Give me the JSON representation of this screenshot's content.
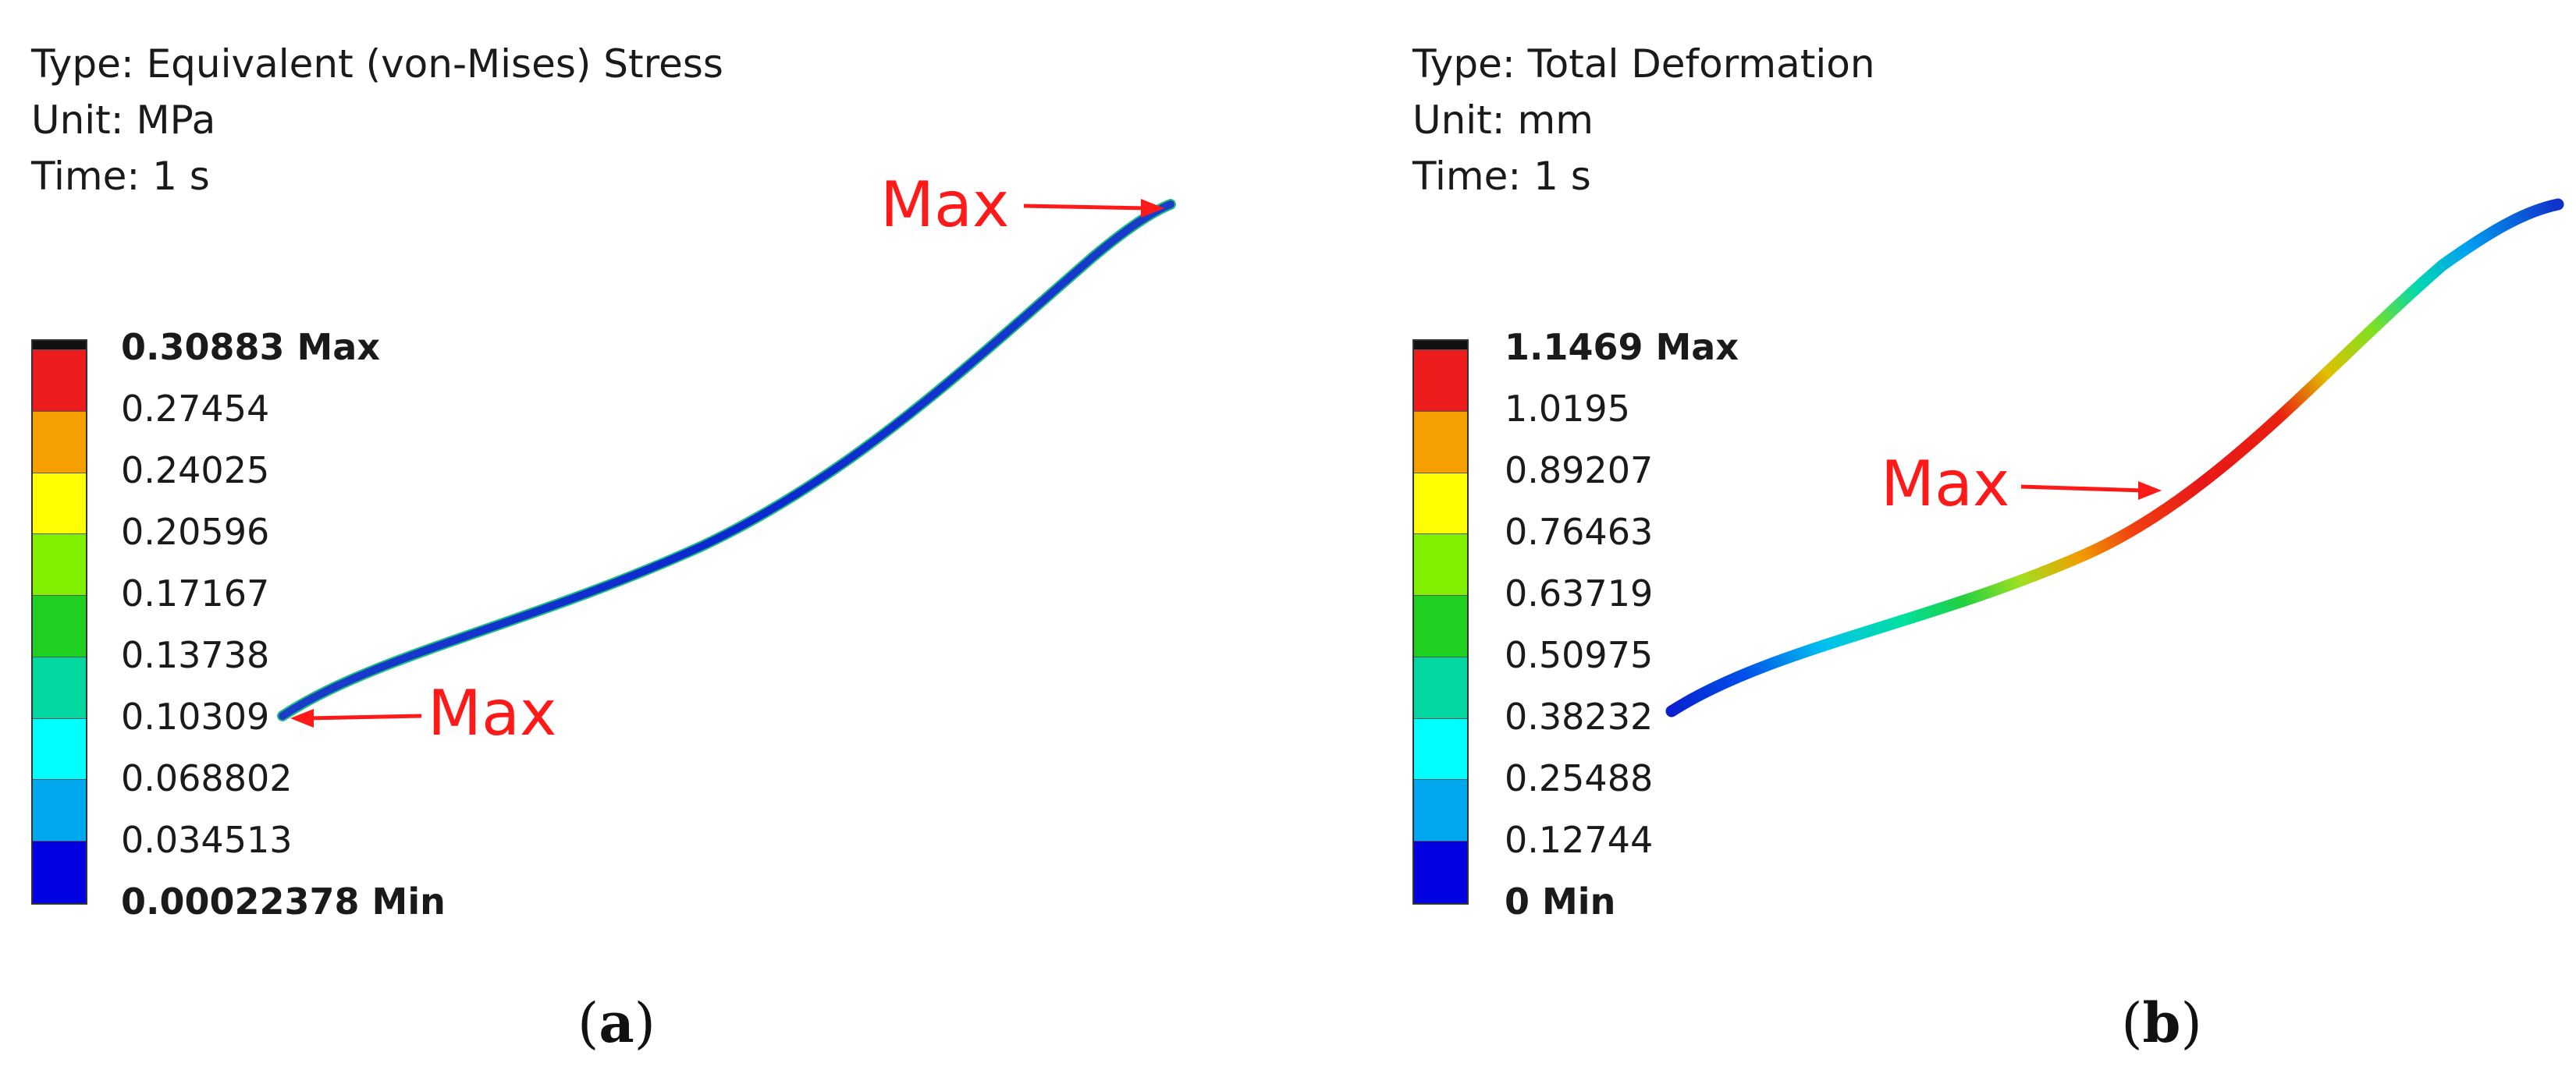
{
  "panels": [
    {
      "type_label": "Type: Equivalent (von-Mises) Stress",
      "unit_label": "Unit: MPa",
      "time_label": "Time: 1 s",
      "legend": {
        "colors": [
          "#ee1c1c",
          "#f5a000",
          "#ffff00",
          "#80f000",
          "#20d020",
          "#00d8a0",
          "#00ffff",
          "#00a8f0",
          "#0000e0"
        ],
        "labels": [
          "0.30883 Max",
          "0.27454",
          "0.24025",
          "0.20596",
          "0.17167",
          "0.13738",
          "0.10309",
          "0.068802",
          "0.034513",
          "0.00022378 Min"
        ]
      },
      "max_annotations": [
        "Max",
        "Max"
      ],
      "caption_open": "(",
      "caption_letter": "a",
      "caption_close": ")"
    },
    {
      "type_label": "Type: Total Deformation",
      "unit_label": "Unit: mm",
      "time_label": "Time: 1 s",
      "legend": {
        "colors": [
          "#ee1c1c",
          "#f5a000",
          "#ffff00",
          "#80f000",
          "#20d020",
          "#00d8a0",
          "#00ffff",
          "#00a8f0",
          "#0000e0"
        ],
        "labels": [
          "1.1469 Max",
          "1.0195",
          "0.89207",
          "0.76463",
          "0.63719",
          "0.50975",
          "0.38232",
          "0.25488",
          "0.12744",
          "0 Min"
        ]
      },
      "max_annotations": [
        "Max"
      ],
      "caption_open": "(",
      "caption_letter": "b",
      "caption_close": ")"
    }
  ]
}
